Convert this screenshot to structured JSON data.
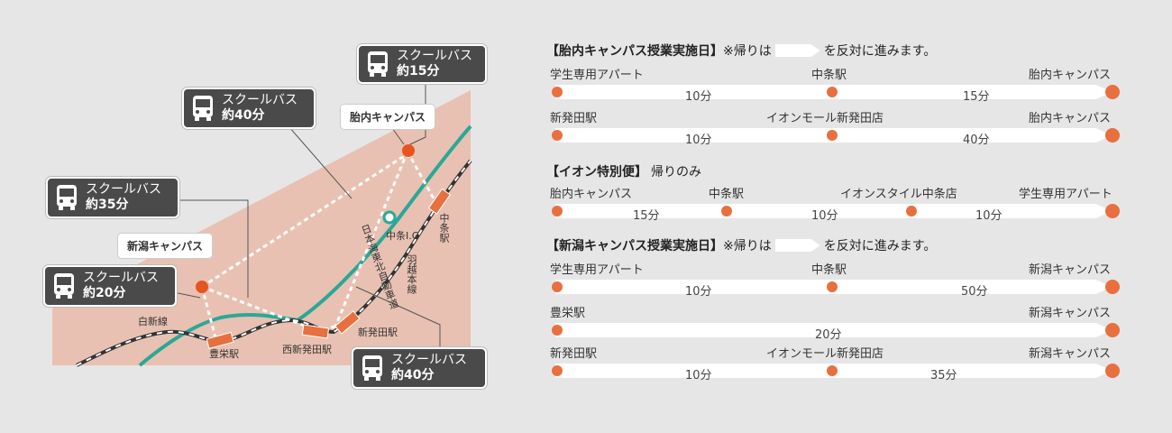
{
  "map": {
    "bus_boxes": [
      {
        "line1": "スクールバス",
        "line2": "約15分"
      },
      {
        "line1": "スクールバス",
        "line2": "約40分"
      },
      {
        "line1": "スクールバス",
        "line2": "約35分"
      },
      {
        "line1": "スクールバス",
        "line2": "約20分"
      },
      {
        "line1": "スクールバス",
        "line2": "約40分"
      }
    ],
    "campus_labels": [
      "胎内キャンパス",
      "新潟キャンパス"
    ],
    "stations": [
      "豊栄駅",
      "西新発田駅",
      "新発田駅",
      "中条駅"
    ],
    "lines": [
      "白新線",
      "羽越本線",
      "日本海東北自動車道"
    ],
    "interchange": "中条I.C",
    "colors": {
      "land": "#e8c1b2",
      "expressway": "#2aa896",
      "station": "#e8703f",
      "dot": "#e8541f",
      "box": "#4a4a4a"
    }
  },
  "sections": [
    {
      "title": "【胎内キャンパス授業実施日】",
      "note_before": "※帰りは",
      "note_after": "を反対に進みます。",
      "routes": [
        {
          "stops": [
            "学生専用アパート",
            "中条駅",
            "胎内キャンパス"
          ],
          "times": [
            "10分",
            "15分"
          ]
        },
        {
          "stops": [
            "新発田駅",
            "イオンモール新発田店",
            "胎内キャンパス"
          ],
          "times": [
            "10分",
            "40分"
          ]
        }
      ]
    },
    {
      "title": "【イオン特別便】",
      "note_before": "帰りのみ",
      "note_after": "",
      "routes": [
        {
          "stops": [
            "胎内キャンパス",
            "中条駅",
            "イオンスタイル中条店",
            "学生専用アパート"
          ],
          "times": [
            "15分",
            "10分",
            "10分"
          ]
        }
      ]
    },
    {
      "title": "【新潟キャンパス授業実施日】",
      "note_before": "※帰りは",
      "note_after": "を反対に進みます。",
      "routes": [
        {
          "stops": [
            "学生専用アパート",
            "中条駅",
            "新潟キャンパス"
          ],
          "times": [
            "10分",
            "50分"
          ]
        },
        {
          "stops": [
            "豊栄駅",
            "新潟キャンパス"
          ],
          "times": [
            "20分"
          ]
        },
        {
          "stops": [
            "新発田駅",
            "イオンモール新発田店",
            "新潟キャンパス"
          ],
          "times": [
            "10分",
            "35分"
          ]
        }
      ]
    }
  ]
}
